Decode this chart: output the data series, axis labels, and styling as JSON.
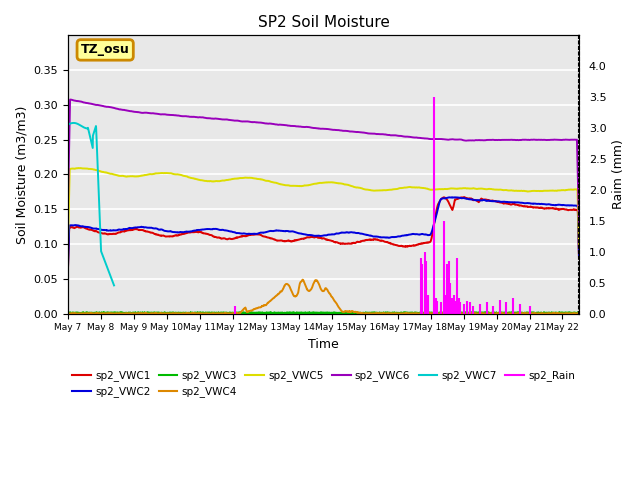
{
  "title": "SP2 Soil Moisture",
  "xlabel": "Time",
  "ylabel_left": "Soil Moisture (m3/m3)",
  "ylabel_right": "Raim (mm)",
  "ylim_left": [
    0,
    0.4
  ],
  "ylim_right": [
    0,
    4.5
  ],
  "yticks_left": [
    0.0,
    0.05,
    0.1,
    0.15,
    0.2,
    0.25,
    0.3,
    0.35
  ],
  "yticks_right": [
    0.0,
    0.5,
    1.0,
    1.5,
    2.0,
    2.5,
    3.0,
    3.5,
    4.0
  ],
  "xtick_labels": [
    "May 7",
    "May 8",
    "May 9",
    "May 10",
    "May 11",
    "May 12",
    "May 13",
    "May 14",
    "May 15",
    "May 16",
    "May 17",
    "May 18",
    "May 19",
    "May 20",
    "May 21",
    "May 22"
  ],
  "annotation_text": "TZ_osu",
  "colors": {
    "VWC1": "#dd0000",
    "VWC2": "#0000dd",
    "VWC3": "#00bb00",
    "VWC4": "#dd8800",
    "VWC5": "#dddd00",
    "VWC6": "#9900bb",
    "VWC7": "#00cccc",
    "Rain": "#ff00ff"
  },
  "background_color": "#e8e8e8",
  "grid_color": "#ffffff",
  "title_fontsize": 11,
  "axis_fontsize": 9,
  "tick_fontsize": 8
}
